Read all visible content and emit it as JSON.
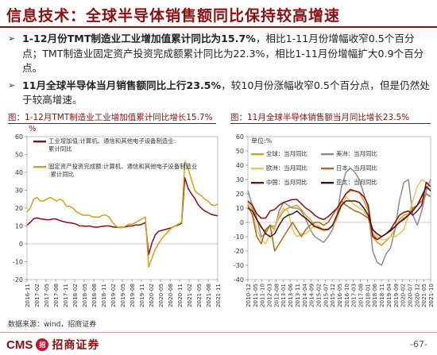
{
  "page": {
    "title": "信息技术：全球半导体销售额同比保持较高增速",
    "bullets": [
      {
        "bold": "1-12月份TMT制造业工业增加值累计同比为15.7%",
        "rest": "，相比1-11月份增幅收窄0.5个百分点；TMT制造业固定资产投资完成额累计同比为22.3%，相比1-11月份增幅扩大0.9个百分点。"
      },
      {
        "bold": "11月全球半导体当月销售额同比上行23.5%",
        "rest": "，较10月份涨幅收窄0.5个百分点，但是仍然处于较高增速。"
      }
    ],
    "source": "数据来源：wind，招商证券",
    "footer": {
      "logo_text": "CMS",
      "badge": "招",
      "company": "招商证券",
      "page_number": "-67-"
    }
  },
  "colors": {
    "accent": "#8b0e11",
    "series_dark_red": "#8b0e11",
    "series_gold": "#d4a017",
    "series_gray": "#8c8c8c",
    "series_red": "#e0291f",
    "series_dark": "#4d0f10",
    "series_light_gold": "#e8c25a"
  },
  "chart_data": [
    {
      "type": "line",
      "title": "图：1-12月TMT制造业工业增加值累计同比增长15.7%",
      "ylabel": "%",
      "ylim": [
        -20,
        60
      ],
      "yticks": [
        -20,
        -10,
        0,
        10,
        20,
        30,
        40,
        50,
        60
      ],
      "x_tick_labels": [
        "2016-11",
        "2017-02",
        "2017-05",
        "2017-08",
        "2017-11",
        "2018-02",
        "2018-05",
        "2018-08",
        "2018-11",
        "2019-02",
        "2019-05",
        "2019-08",
        "2019-11",
        "2020-02",
        "2020-05",
        "2020-08",
        "2020-11",
        "2021-02",
        "2021-05",
        "2021-08",
        "2021-11"
      ],
      "legend_placement": "top-left",
      "series": [
        {
          "name": "工业增加值:计算机、通信和其他电子设备制造业:累计同比",
          "color": "#8b0e11",
          "values": [
            10.5,
            12,
            14,
            14.5,
            14,
            13.8,
            13.5,
            13.5,
            14,
            13.8,
            13,
            12.5,
            12,
            11.8,
            11.5,
            11,
            10,
            10,
            9.8,
            10,
            9.5,
            9.3,
            9.5,
            9.8,
            10,
            10,
            9.5,
            9.3,
            9.2,
            9.3,
            9.5,
            10,
            10,
            10.5,
            10.5,
            11,
            12,
            -6,
            0.5,
            5,
            7,
            7.5,
            8,
            8.5,
            9,
            10,
            10.5,
            11.5,
            37,
            31,
            28,
            25.5,
            22,
            20,
            18.5,
            17.5,
            16.5,
            16,
            15.7
          ]
        },
        {
          "name": "固定资产投资完成额:计算机、通信和其他电子设备制造业:累计同比",
          "color": "#d4a017",
          "values": [
            18,
            20,
            25,
            26,
            24,
            24,
            25,
            26,
            25,
            24,
            25,
            24,
            21,
            21,
            20,
            18,
            17,
            16,
            16,
            16,
            15,
            15,
            15,
            16,
            16,
            15,
            12,
            10,
            9,
            9,
            10,
            11,
            11,
            12,
            13,
            14,
            15,
            -13,
            -8,
            -3,
            0,
            3,
            5,
            7,
            9,
            10,
            11,
            12,
            46,
            42,
            36,
            30,
            28,
            27,
            25,
            24,
            22,
            21.4,
            22.3
          ]
        }
      ]
    },
    {
      "type": "line",
      "title": "图：11月全球半导体销售额当月同比增长23.5%",
      "ylabel": "单位:%",
      "ylim": [
        -40,
        60
      ],
      "yticks": [
        -40,
        -30,
        -20,
        -10,
        0,
        10,
        20,
        30,
        40,
        50,
        60
      ],
      "x_tick_labels": [
        "2010-12",
        "2011-05",
        "2011-10",
        "2012-03",
        "2012-08",
        "2013-01",
        "2013-06",
        "2013-11",
        "2014-04",
        "2014-09",
        "2015-02",
        "2015-07",
        "2015-12",
        "2016-05",
        "2016-10",
        "2017-03",
        "2017-08",
        "2018-01",
        "2018-06",
        "2018-11",
        "2019-04",
        "2019-09",
        "2020-02",
        "2020-07",
        "2020-12",
        "2021-05",
        "2021-10"
      ],
      "legend_placement": "top-left",
      "series": [
        {
          "name": "全球：当月同比",
          "color": "#d4a017",
          "values": [
            14,
            10,
            2,
            -4,
            -6,
            -2,
            -3,
            3,
            8,
            10,
            11,
            12,
            9,
            5,
            2,
            -2,
            -3,
            -6,
            -5,
            -2,
            5,
            15,
            20,
            22,
            22,
            21,
            15,
            8,
            -10,
            -14,
            -16,
            -13,
            -10,
            -5,
            2,
            5,
            6,
            9,
            12,
            19,
            24,
            23.5
          ]
        },
        {
          "name": "美洲：当月同比",
          "color": "#8c8c8c",
          "values": [
            22,
            12,
            3,
            -10,
            -8,
            -2,
            -5,
            8,
            14,
            12,
            10,
            10,
            8,
            2,
            -5,
            -10,
            -12,
            -14,
            -10,
            -5,
            5,
            25,
            35,
            38,
            35,
            30,
            20,
            10,
            -20,
            -28,
            -30,
            -22,
            -18,
            -5,
            15,
            28,
            30,
            5,
            -2,
            8,
            22,
            30
          ]
        },
        {
          "name": "欧洲：当月同比",
          "color": "#e8c25a",
          "values": [
            15,
            8,
            -5,
            -12,
            -15,
            -8,
            -5,
            5,
            10,
            8,
            -5,
            -10,
            -8,
            -8,
            -5,
            -2,
            -5,
            -6,
            -4,
            -3,
            2,
            12,
            18,
            15,
            12,
            10,
            8,
            3,
            -5,
            -10,
            -12,
            -12,
            -10,
            -10,
            -8,
            -5,
            5,
            15,
            25,
            30,
            28,
            27
          ]
        },
        {
          "name": "日本：当月同比",
          "color": "#b5651d",
          "values": [
            12,
            5,
            -10,
            -15,
            -5,
            -2,
            -20,
            -15,
            -10,
            -5,
            0,
            -5,
            -10,
            -5,
            -2,
            0,
            0,
            -2,
            0,
            5,
            10,
            15,
            12,
            10,
            8,
            7,
            5,
            3,
            -8,
            -12,
            -10,
            -8,
            -5,
            -3,
            0,
            3,
            5,
            10,
            12,
            15,
            20,
            18
          ]
        },
        {
          "name": "中国：当月同比",
          "color": "#8b0e11",
          "values": [
            15,
            12,
            6,
            3,
            3,
            8,
            9,
            12,
            14,
            15,
            16,
            16,
            13,
            10,
            8,
            5,
            3,
            2,
            4,
            7,
            10,
            15,
            20,
            23,
            22,
            21,
            18,
            12,
            -10,
            -12,
            -10,
            -8,
            -5,
            0,
            5,
            7,
            8,
            5,
            8,
            12,
            28,
            25
          ]
        },
        {
          "name": "亚太：当月同比",
          "color": "#4d0f10",
          "values": [
            10,
            8,
            2,
            -3,
            -8,
            -10,
            -8,
            -2,
            3,
            5,
            6,
            8,
            5,
            3,
            0,
            -3,
            -4,
            -5,
            -5,
            -2,
            5,
            12,
            15,
            15,
            15,
            14,
            10,
            5,
            -5,
            -8,
            -10,
            -8,
            -6,
            -3,
            0,
            2,
            5,
            8,
            12,
            18,
            25,
            22
          ]
        }
      ]
    }
  ]
}
